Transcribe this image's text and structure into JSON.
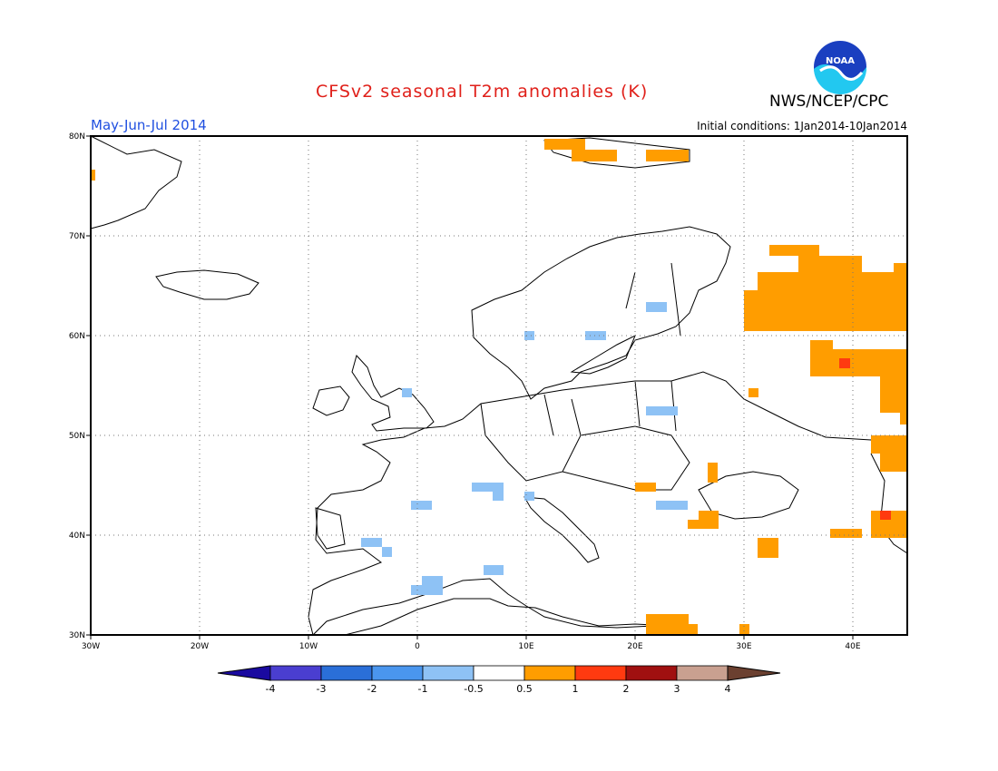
{
  "title": "CFSv2 seasonal T2m anomalies (K)",
  "organization": "NWS/NCEP/CPC",
  "logo_text": "NOAA",
  "period": "May-Jun-Jul 2014",
  "initial_conditions": "Initial conditions: 1Jan2014-10Jan2014",
  "map": {
    "lon_range": [
      -30,
      45
    ],
    "lat_range": [
      30,
      80
    ],
    "lat_ticks": [
      {
        "v": 80,
        "label": "80N"
      },
      {
        "v": 70,
        "label": "70N"
      },
      {
        "v": 60,
        "label": "60N"
      },
      {
        "v": 50,
        "label": "50N"
      },
      {
        "v": 40,
        "label": "40N"
      },
      {
        "v": 30,
        "label": "30N"
      }
    ],
    "lon_ticks": [
      {
        "v": -30,
        "label": "30W"
      },
      {
        "v": -20,
        "label": "20W"
      },
      {
        "v": -10,
        "label": "10W"
      },
      {
        "v": 0,
        "label": "0"
      },
      {
        "v": 10,
        "label": "10E"
      },
      {
        "v": 20,
        "label": "20E"
      },
      {
        "v": 30,
        "label": "30E"
      },
      {
        "v": 40,
        "label": "40E"
      }
    ],
    "grid": "dotted"
  },
  "colorbar": {
    "tick_labels": [
      "-4",
      "-3",
      "-2",
      "-1",
      "-0.5",
      "0.5",
      "1",
      "2",
      "3",
      "4"
    ],
    "colors": [
      "#1a0aa0",
      "#4a3ed0",
      "#2a6fd8",
      "#4a96ee",
      "#8ec2f5",
      "#ffffff",
      "#ff9d00",
      "#ff3a10",
      "#a01010",
      "#c9a090",
      "#6b4030"
    ]
  }
}
